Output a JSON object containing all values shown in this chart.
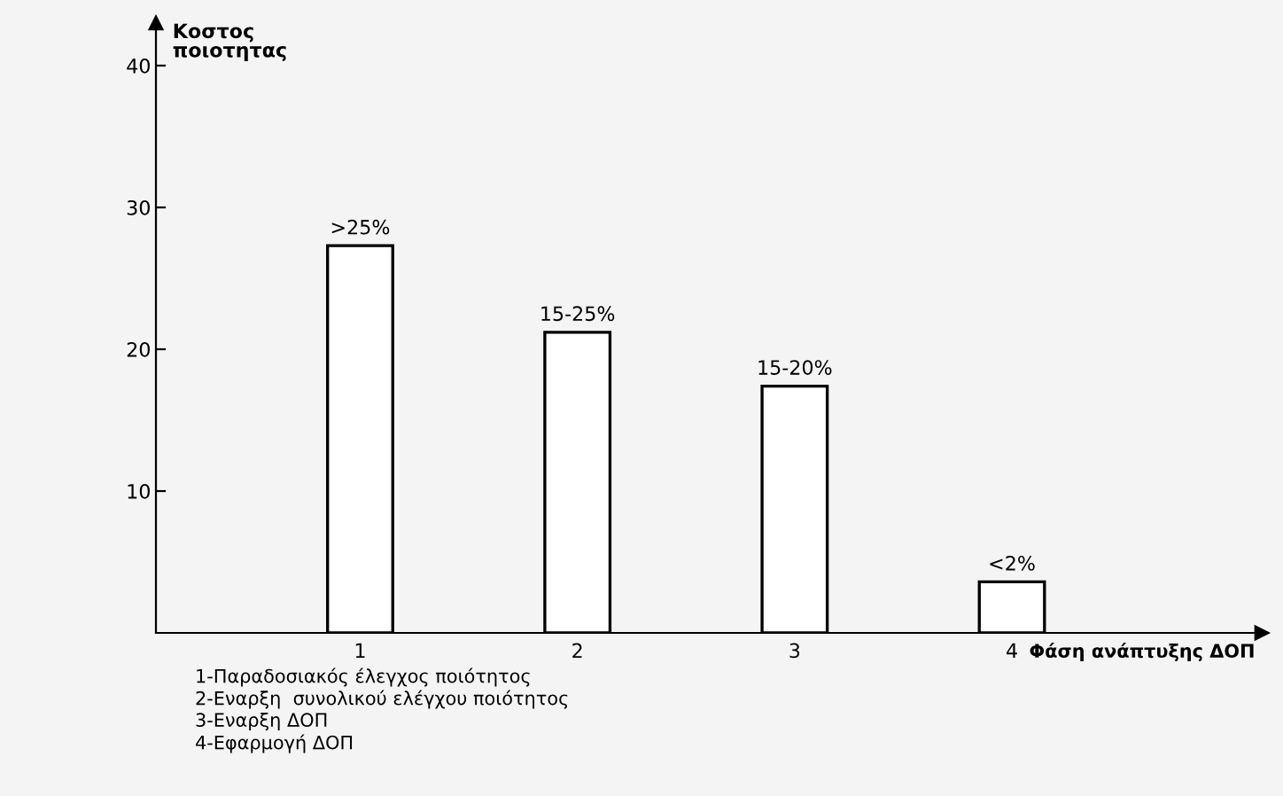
{
  "chart_data": {
    "type": "bar",
    "categories": [
      "1",
      "2",
      "3",
      "4"
    ],
    "values": [
      27.3,
      21.2,
      17.4,
      3.6
    ],
    "color": "#ffffff",
    "ylabel": "Κοστος\nποιοτητας",
    "xlabel": "Φάση ανάπτυξης ΔΟΠ",
    "ylim": [
      0,
      43
    ],
    "yticks": [
      10,
      20,
      30,
      40
    ],
    "grid": false,
    "legend": false,
    "annotations": [
      {
        "text": ">25%",
        "x": "1",
        "y": 27.3
      },
      {
        "text": "15-25%",
        "x": "2",
        "y": 21.2
      },
      {
        "text": "15-20%",
        "x": "3",
        "y": 17.4
      },
      {
        "text": "<2%",
        "x": "4",
        "y": 3.6
      },
      "1-Παραδοσιακός έλεγχος ποιότητος",
      "2-Εναρξη  συνολικού ελέγχου ποιότητος",
      "3-Εναρξη ΔΟΠ",
      "4-Εφαρμογή ΔΟΠ"
    ]
  }
}
